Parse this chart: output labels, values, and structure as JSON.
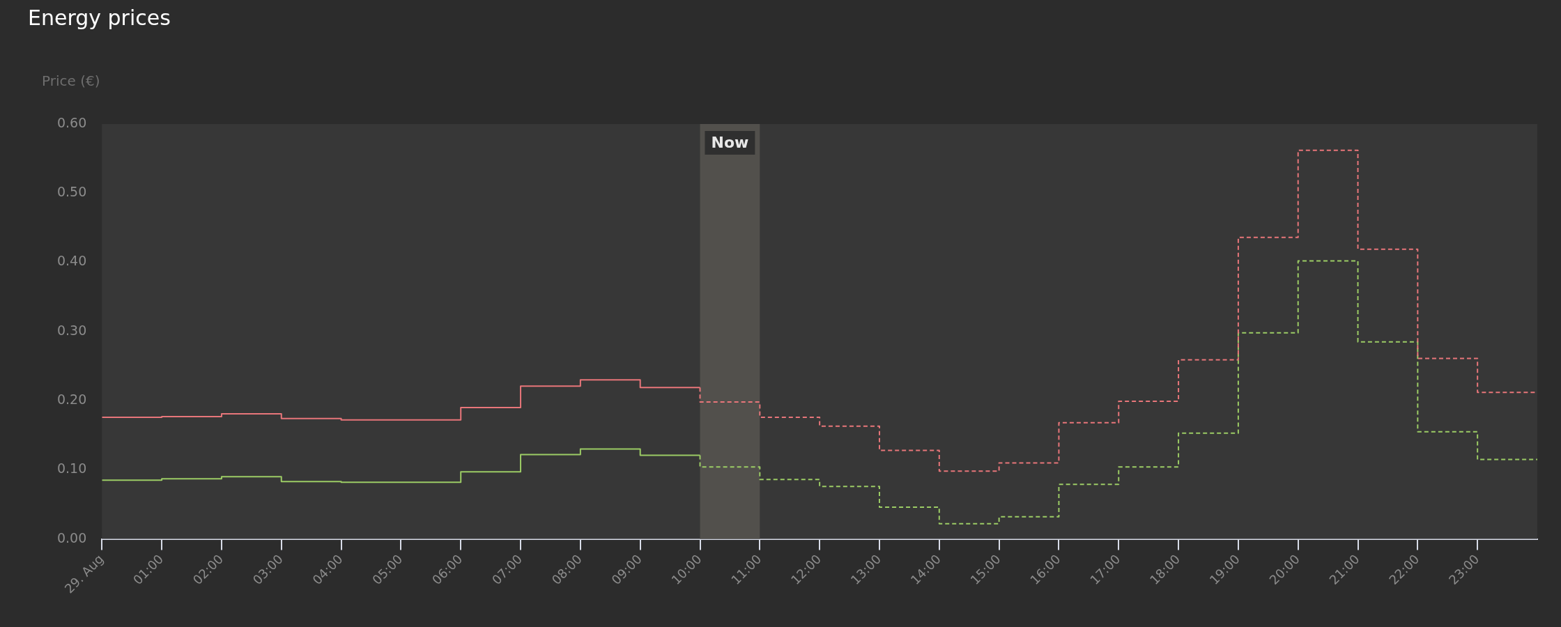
{
  "chart_data": {
    "type": "step",
    "title": "Energy prices",
    "ylabel": "Price (€)",
    "xlim": [
      0,
      24
    ],
    "xticks": [
      {
        "value": 0,
        "label": "29. Aug"
      },
      {
        "value": 1,
        "label": "01:00"
      },
      {
        "value": 2,
        "label": "02:00"
      },
      {
        "value": 3,
        "label": "03:00"
      },
      {
        "value": 4,
        "label": "04:00"
      },
      {
        "value": 5,
        "label": "05:00"
      },
      {
        "value": 6,
        "label": "06:00"
      },
      {
        "value": 7,
        "label": "07:00"
      },
      {
        "value": 8,
        "label": "08:00"
      },
      {
        "value": 9,
        "label": "09:00"
      },
      {
        "value": 10,
        "label": "10:00"
      },
      {
        "value": 11,
        "label": "11:00"
      },
      {
        "value": 12,
        "label": "12:00"
      },
      {
        "value": 13,
        "label": "13:00"
      },
      {
        "value": 14,
        "label": "14:00"
      },
      {
        "value": 15,
        "label": "15:00"
      },
      {
        "value": 16,
        "label": "16:00"
      },
      {
        "value": 17,
        "label": "17:00"
      },
      {
        "value": 18,
        "label": "18:00"
      },
      {
        "value": 19,
        "label": "19:00"
      },
      {
        "value": 20,
        "label": "20:00"
      },
      {
        "value": 21,
        "label": "21:00"
      },
      {
        "value": 22,
        "label": "22:00"
      },
      {
        "value": 23,
        "label": "23:00"
      }
    ],
    "ylim": [
      0,
      0.6
    ],
    "yticks": [
      {
        "value": 0,
        "label": "0.00"
      },
      {
        "value": 0.1,
        "label": "0.10"
      },
      {
        "value": 0.2,
        "label": "0.20"
      },
      {
        "value": 0.3,
        "label": "0.30"
      },
      {
        "value": 0.4,
        "label": "0.40"
      },
      {
        "value": 0.5,
        "label": "0.50"
      },
      {
        "value": 0.6,
        "label": "0.60"
      }
    ],
    "grid": false,
    "legend": false,
    "bands": [
      {
        "axis": "x",
        "from": 10,
        "to": 11,
        "label": "Now",
        "color": "#52504c"
      }
    ],
    "series": [
      {
        "color": "#e8767a",
        "line_style": "solid",
        "x": [
          0,
          1,
          2,
          3,
          4,
          5,
          6,
          7,
          8,
          9,
          10
        ],
        "values": [
          0.176,
          0.177,
          0.181,
          0.174,
          0.172,
          0.172,
          0.19,
          0.221,
          0.23,
          0.219,
          0.219
        ]
      },
      {
        "color": "#e8767a",
        "line_style": "dashed",
        "x": [
          10,
          10,
          11,
          12,
          13,
          14,
          15,
          16,
          17,
          18,
          19,
          20,
          21,
          22,
          23,
          24
        ],
        "values": [
          0.219,
          0.198,
          0.176,
          0.163,
          0.128,
          0.098,
          0.11,
          0.168,
          0.199,
          0.259,
          0.436,
          0.562,
          0.419,
          0.261,
          0.212,
          0.212
        ]
      },
      {
        "color": "#9ccc65",
        "line_style": "solid",
        "x": [
          0,
          1,
          2,
          3,
          4,
          5,
          6,
          7,
          8,
          9,
          10
        ],
        "values": [
          0.085,
          0.087,
          0.09,
          0.083,
          0.082,
          0.082,
          0.097,
          0.122,
          0.13,
          0.121,
          0.121
        ]
      },
      {
        "color": "#9ccc65",
        "line_style": "dashed",
        "x": [
          10,
          10,
          11,
          12,
          13,
          14,
          15,
          16,
          17,
          18,
          19,
          20,
          21,
          22,
          23,
          24
        ],
        "values": [
          0.121,
          0.104,
          0.086,
          0.076,
          0.046,
          0.022,
          0.032,
          0.079,
          0.104,
          0.153,
          0.298,
          0.402,
          0.285,
          0.155,
          0.115,
          0.115
        ]
      }
    ]
  }
}
